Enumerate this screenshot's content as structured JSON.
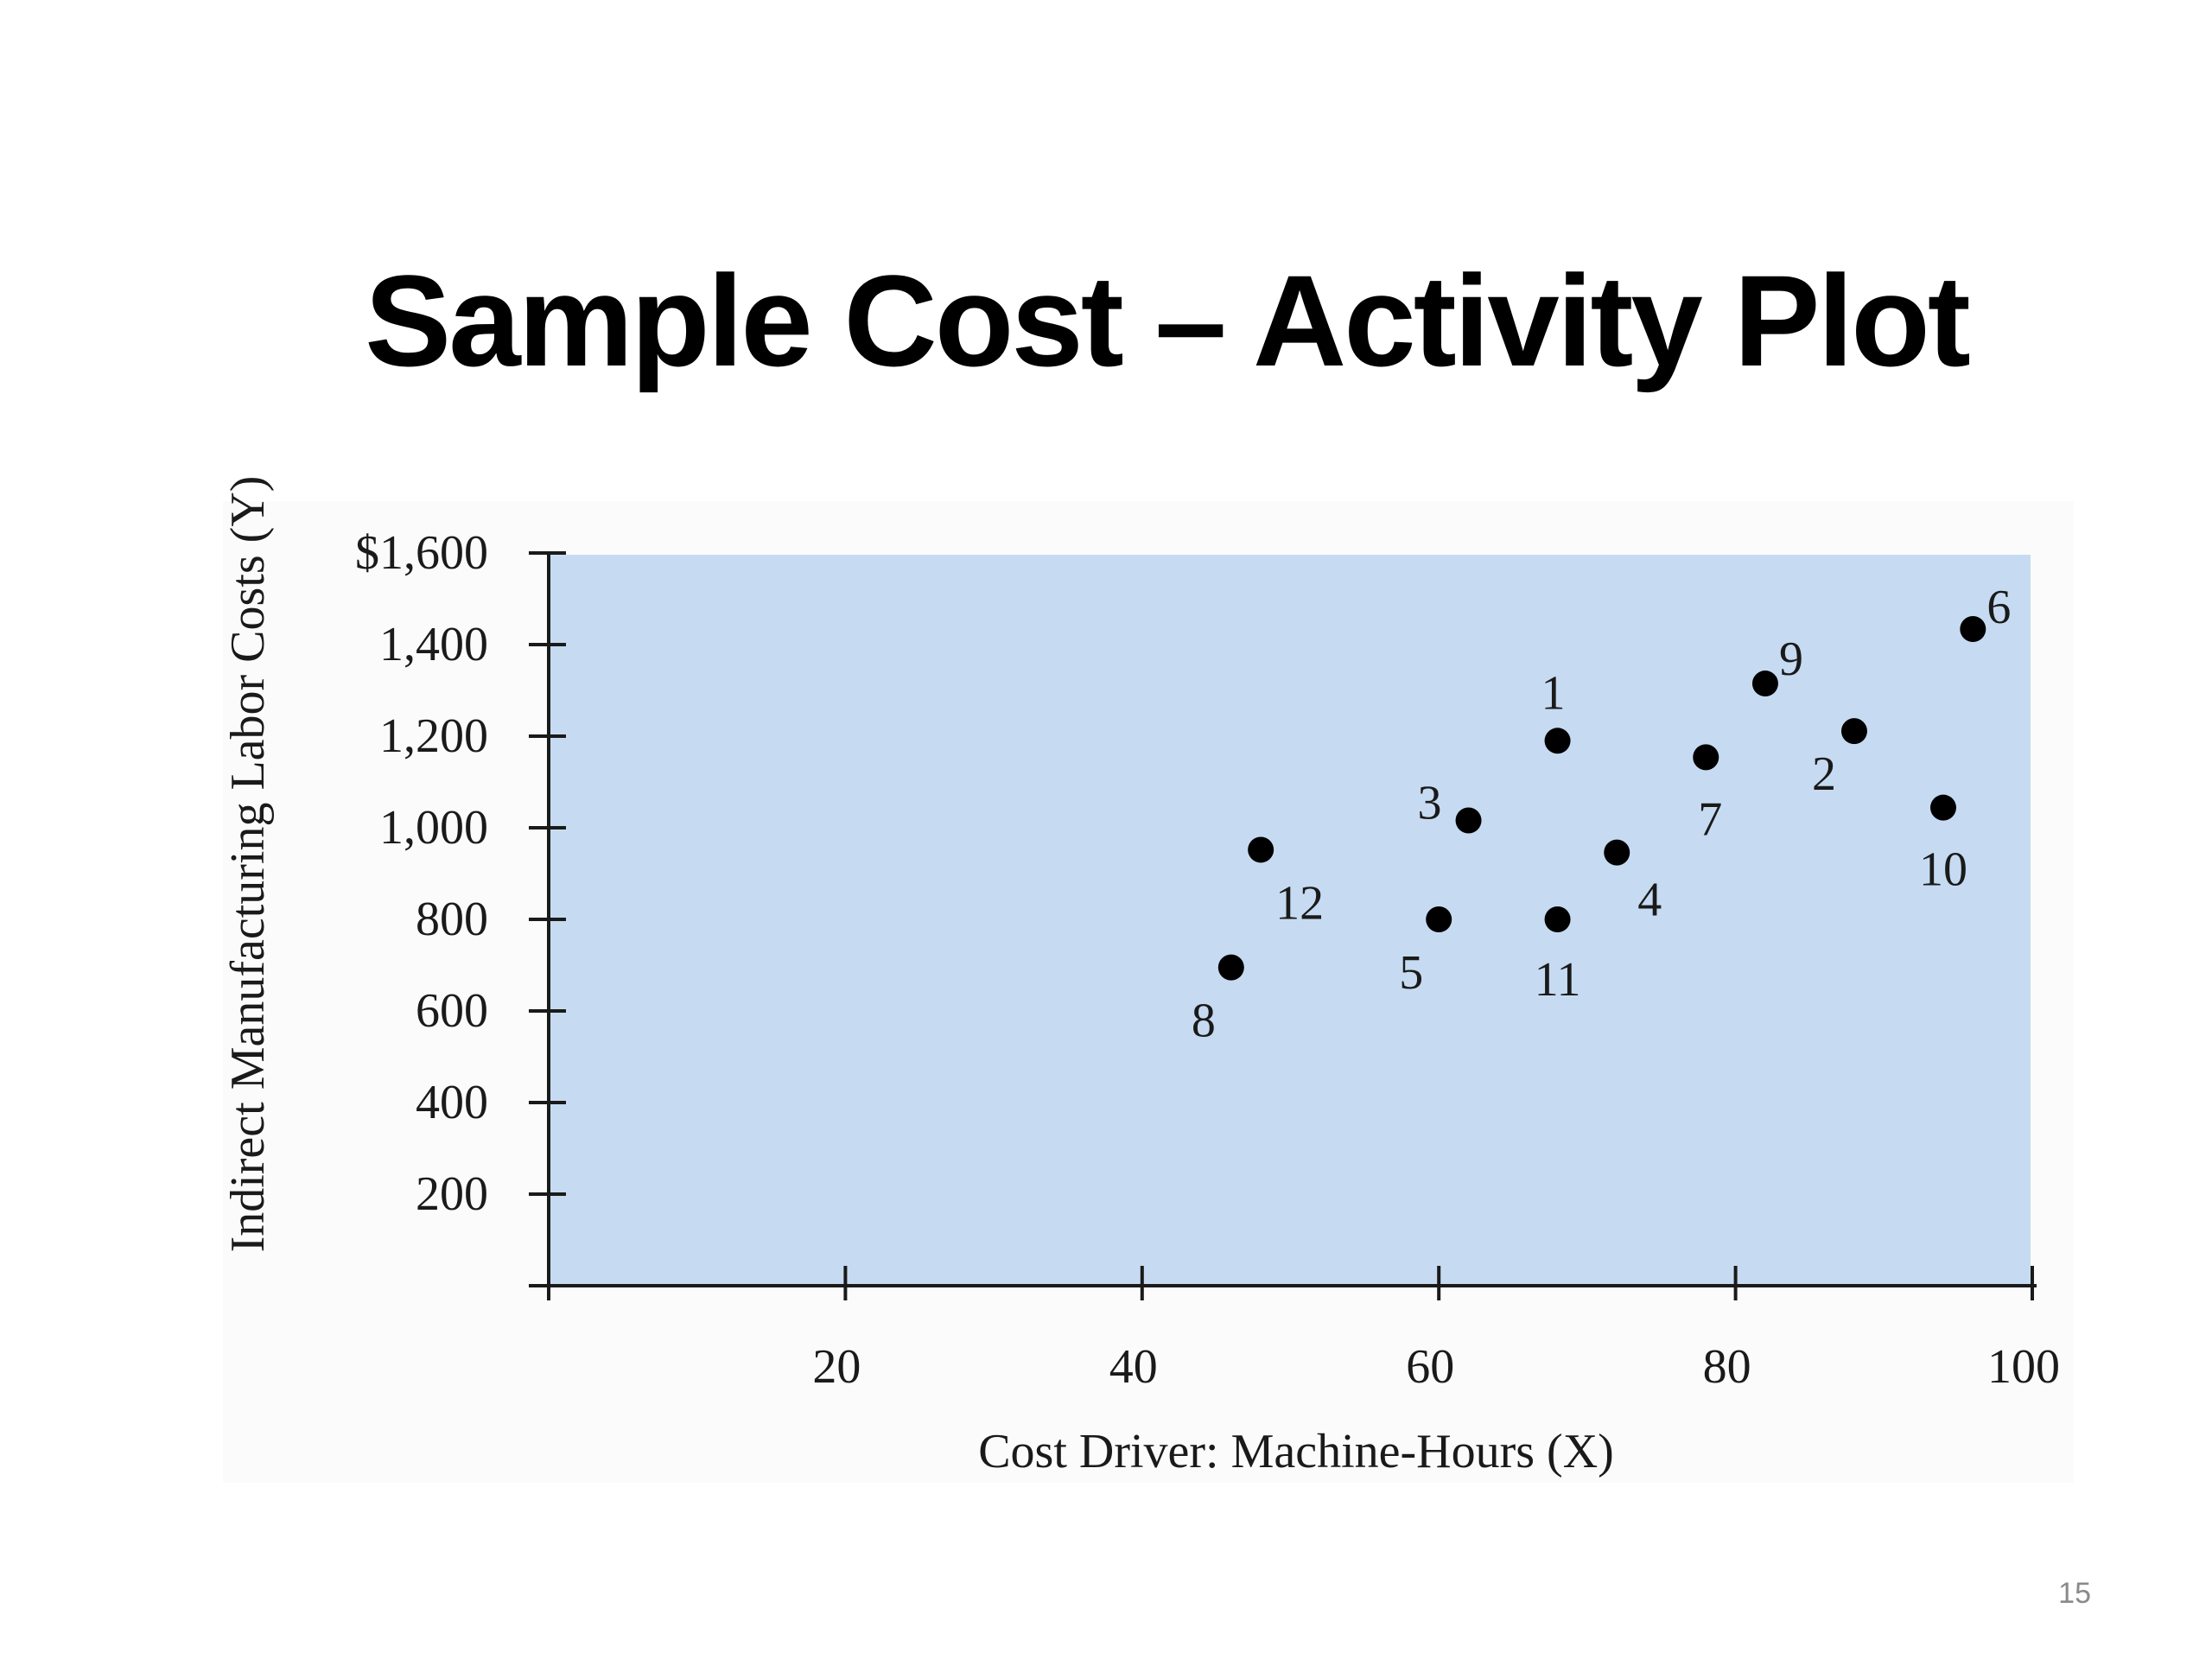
{
  "slide": {
    "title": "Sample Cost – Activity Plot",
    "page_number": "15"
  },
  "colors": {
    "plot_background": "#c6dbf2",
    "points": "#000000",
    "axis": "#1a1a1a"
  },
  "chart_data": {
    "type": "scatter",
    "title": "",
    "xlabel": "Cost Driver: Machine-Hours (X)",
    "ylabel": "Indirect Manufacturing Labor Costs (Y)",
    "xlim": [
      0,
      100
    ],
    "ylim": [
      0,
      1600
    ],
    "x_ticks": [
      20,
      40,
      60,
      80,
      100
    ],
    "y_ticks": [
      200,
      400,
      600,
      800,
      1000,
      1200,
      1400,
      1600
    ],
    "x_tick_labels": [
      "20",
      "40",
      "60",
      "80",
      "100"
    ],
    "y_tick_labels": [
      "200",
      "400",
      "600",
      "800",
      "1,000",
      "1,200",
      "1,400",
      "$1,600"
    ],
    "grid": false,
    "legend": "none",
    "points": [
      {
        "label": "1",
        "x": 68,
        "y": 1190
      },
      {
        "label": "2",
        "x": 88,
        "y": 1211
      },
      {
        "label": "3",
        "x": 62,
        "y": 1016
      },
      {
        "label": "4",
        "x": 72,
        "y": 946
      },
      {
        "label": "5",
        "x": 60,
        "y": 800
      },
      {
        "label": "6",
        "x": 96,
        "y": 1434
      },
      {
        "label": "7",
        "x": 78,
        "y": 1154
      },
      {
        "label": "8",
        "x": 46,
        "y": 695
      },
      {
        "label": "9",
        "x": 82,
        "y": 1315
      },
      {
        "label": "10",
        "x": 94,
        "y": 1044
      },
      {
        "label": "11",
        "x": 68,
        "y": 800
      },
      {
        "label": "12",
        "x": 48,
        "y": 952
      }
    ]
  }
}
